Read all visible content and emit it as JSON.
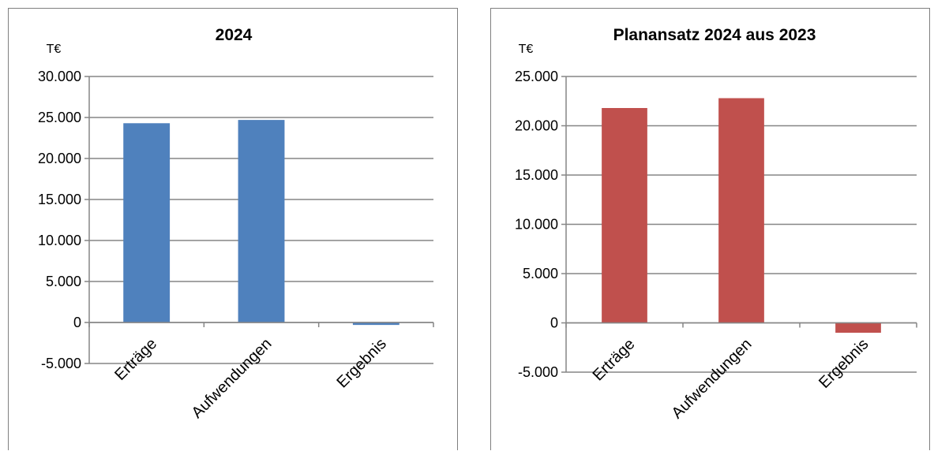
{
  "chart_data": [
    {
      "type": "bar",
      "title": "2024",
      "unit": "T€",
      "categories": [
        "Erträge",
        "Aufwendungen",
        "Ergebnis"
      ],
      "values": [
        24300,
        24700,
        -300
      ],
      "ylim": [
        -5000,
        30000
      ],
      "yticks": [
        -5000,
        0,
        5000,
        10000,
        15000,
        20000,
        25000,
        30000
      ],
      "ytick_labels": [
        "-5.000",
        "0",
        "5.000",
        "10.000",
        "15.000",
        "20.000",
        "25.000",
        "30.000"
      ],
      "color": "#4f81bd",
      "grid": true
    },
    {
      "type": "bar",
      "title": "Planansatz 2024 aus 2023",
      "unit": "T€",
      "categories": [
        "Erträge",
        "Aufwendungen",
        "Ergebnis"
      ],
      "values": [
        21800,
        22800,
        -1000
      ],
      "ylim": [
        -5000,
        25000
      ],
      "yticks": [
        -5000,
        0,
        5000,
        10000,
        15000,
        20000,
        25000
      ],
      "ytick_labels": [
        "-5.000",
        "0",
        "5.000",
        "10.000",
        "15.000",
        "20.000",
        "25.000"
      ],
      "color": "#c0504d",
      "grid": true
    }
  ]
}
